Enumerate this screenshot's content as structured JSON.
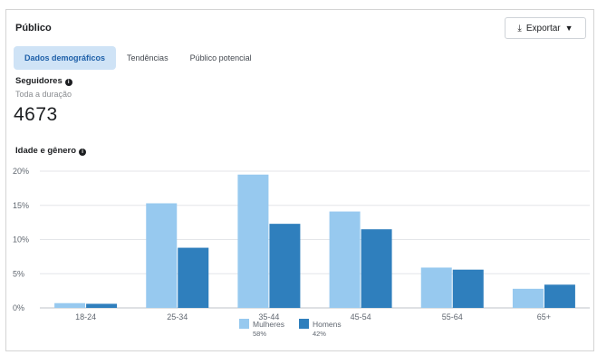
{
  "header": {
    "title": "Público",
    "export_label": "Exportar"
  },
  "tabs": [
    {
      "label": "Dados demográficos",
      "active": true
    },
    {
      "label": "Tendências",
      "active": false
    },
    {
      "label": "Público potencial",
      "active": false
    }
  ],
  "followers": {
    "label": "Seguidores",
    "sublabel": "Toda a duração",
    "value": "4673"
  },
  "age_gender": {
    "label": "Idade e gênero"
  },
  "colors": {
    "women": "#97c9ef",
    "men": "#2f7fbd",
    "active_tab_bg": "#cfe3f6",
    "active_tab_text": "#1d5fa8"
  },
  "icons": {
    "export": "download-icon",
    "dropdown": "caret-down-icon",
    "info": "info-icon"
  },
  "chart_data": {
    "type": "bar",
    "categories": [
      "18-24",
      "25-34",
      "35-44",
      "45-54",
      "55-64",
      "65+"
    ],
    "series": [
      {
        "name": "Mulheres",
        "share": "58%",
        "values": [
          0.7,
          15.3,
          19.5,
          14.1,
          5.9,
          2.8
        ]
      },
      {
        "name": "Homens",
        "share": "42%",
        "values": [
          0.6,
          8.8,
          12.3,
          11.5,
          5.6,
          3.4
        ]
      }
    ],
    "yticks": [
      "0%",
      "5%",
      "10%",
      "15%",
      "20%"
    ],
    "ylim": [
      0,
      20
    ],
    "grid": true,
    "legend": "bottom"
  }
}
